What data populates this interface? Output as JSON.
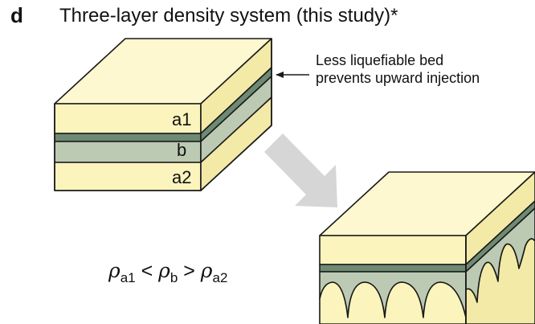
{
  "panel": {
    "letter": "d",
    "title": "Three-layer density system (this study)*"
  },
  "annotation": {
    "line1": "Less liquefiable bed",
    "line2": "prevents upward injection"
  },
  "layers": {
    "top": "a1",
    "middle": "b",
    "bottom": "a2"
  },
  "formula": {
    "rho": "ρ",
    "sub_a1": "a1",
    "lt": " < ",
    "sub_b": "b",
    "gt": " > ",
    "sub_a2": "a2"
  },
  "colors": {
    "sand": "#fbf4bd",
    "sand_side": "#f2eaa6",
    "sand_top": "#fdf8cf",
    "dark_band": "#6e8a73",
    "mud": "#bccab3",
    "arrow_gray": "#d6d6d6",
    "stroke": "#1a1a1a"
  }
}
